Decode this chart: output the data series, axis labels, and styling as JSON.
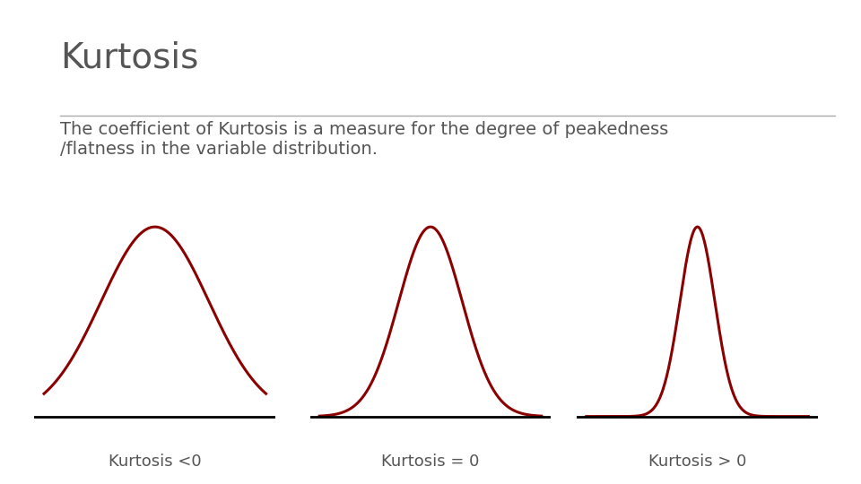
{
  "title": "Kurtosis",
  "subtitle_line1": "The coefficient of Kurtosis is a measure for the degree of peakedness",
  "subtitle_line2": "/flatness in the variable distribution.",
  "label1": "Kurtosis <0",
  "label2": "Kurtosis = 0",
  "label3": "Kurtosis > 0",
  "curve_color": "#8B0000",
  "line_color": "#000000",
  "title_color": "#555555",
  "subtitle_color": "#555555",
  "label_color": "#555555",
  "bg_color": "#FFFFFF",
  "bar_color": "#6AAA1A",
  "title_fontsize": 28,
  "subtitle_fontsize": 14,
  "label_fontsize": 13,
  "line_width": 2.0,
  "curve_linewidth": 2.2
}
